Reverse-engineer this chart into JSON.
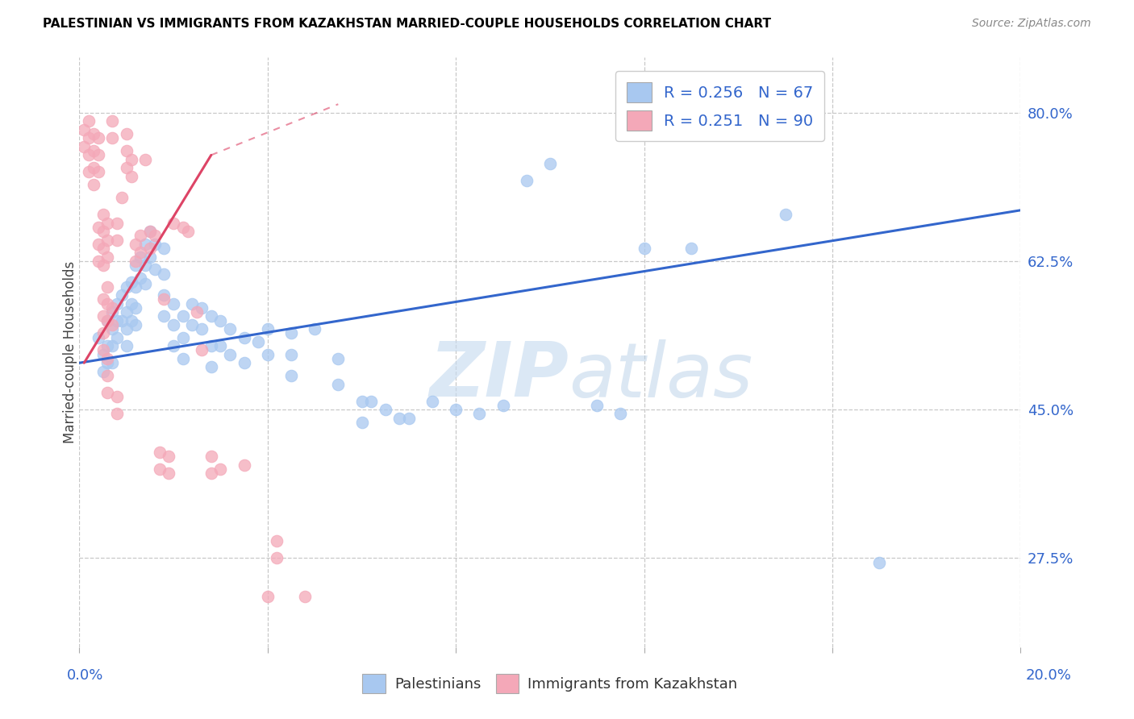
{
  "title": "PALESTINIAN VS IMMIGRANTS FROM KAZAKHSTAN MARRIED-COUPLE HOUSEHOLDS CORRELATION CHART",
  "source": "Source: ZipAtlas.com",
  "ylabel": "Married-couple Households",
  "ytick_labels": [
    "80.0%",
    "62.5%",
    "45.0%",
    "27.5%"
  ],
  "ytick_vals": [
    0.8,
    0.625,
    0.45,
    0.275
  ],
  "xmin": 0.0,
  "xmax": 0.2,
  "ymin": 0.17,
  "ymax": 0.865,
  "blue_color": "#A8C8F0",
  "pink_color": "#F4A8B8",
  "trend_blue_color": "#3366CC",
  "trend_pink_color": "#DD4466",
  "watermark_zip": "ZIP",
  "watermark_atlas": "atlas",
  "blue_scatter": [
    [
      0.004,
      0.535
    ],
    [
      0.005,
      0.515
    ],
    [
      0.005,
      0.495
    ],
    [
      0.006,
      0.555
    ],
    [
      0.006,
      0.525
    ],
    [
      0.006,
      0.505
    ],
    [
      0.007,
      0.565
    ],
    [
      0.007,
      0.545
    ],
    [
      0.007,
      0.525
    ],
    [
      0.007,
      0.505
    ],
    [
      0.008,
      0.575
    ],
    [
      0.008,
      0.555
    ],
    [
      0.008,
      0.535
    ],
    [
      0.009,
      0.585
    ],
    [
      0.009,
      0.555
    ],
    [
      0.01,
      0.595
    ],
    [
      0.01,
      0.565
    ],
    [
      0.01,
      0.545
    ],
    [
      0.01,
      0.525
    ],
    [
      0.011,
      0.6
    ],
    [
      0.011,
      0.575
    ],
    [
      0.011,
      0.555
    ],
    [
      0.012,
      0.62
    ],
    [
      0.012,
      0.595
    ],
    [
      0.012,
      0.57
    ],
    [
      0.012,
      0.55
    ],
    [
      0.013,
      0.63
    ],
    [
      0.013,
      0.605
    ],
    [
      0.014,
      0.645
    ],
    [
      0.014,
      0.62
    ],
    [
      0.014,
      0.598
    ],
    [
      0.015,
      0.66
    ],
    [
      0.015,
      0.63
    ],
    [
      0.016,
      0.645
    ],
    [
      0.016,
      0.615
    ],
    [
      0.018,
      0.64
    ],
    [
      0.018,
      0.61
    ],
    [
      0.018,
      0.585
    ],
    [
      0.018,
      0.56
    ],
    [
      0.02,
      0.575
    ],
    [
      0.02,
      0.55
    ],
    [
      0.02,
      0.525
    ],
    [
      0.022,
      0.56
    ],
    [
      0.022,
      0.535
    ],
    [
      0.022,
      0.51
    ],
    [
      0.024,
      0.575
    ],
    [
      0.024,
      0.55
    ],
    [
      0.026,
      0.57
    ],
    [
      0.026,
      0.545
    ],
    [
      0.028,
      0.56
    ],
    [
      0.028,
      0.525
    ],
    [
      0.028,
      0.5
    ],
    [
      0.03,
      0.555
    ],
    [
      0.03,
      0.525
    ],
    [
      0.032,
      0.545
    ],
    [
      0.032,
      0.515
    ],
    [
      0.035,
      0.535
    ],
    [
      0.035,
      0.505
    ],
    [
      0.038,
      0.53
    ],
    [
      0.04,
      0.545
    ],
    [
      0.04,
      0.515
    ],
    [
      0.045,
      0.54
    ],
    [
      0.045,
      0.515
    ],
    [
      0.045,
      0.49
    ],
    [
      0.05,
      0.545
    ],
    [
      0.055,
      0.51
    ],
    [
      0.055,
      0.48
    ],
    [
      0.06,
      0.46
    ],
    [
      0.06,
      0.435
    ],
    [
      0.062,
      0.46
    ],
    [
      0.065,
      0.45
    ],
    [
      0.068,
      0.44
    ],
    [
      0.07,
      0.44
    ],
    [
      0.075,
      0.46
    ],
    [
      0.08,
      0.45
    ],
    [
      0.085,
      0.445
    ],
    [
      0.09,
      0.455
    ],
    [
      0.095,
      0.72
    ],
    [
      0.1,
      0.74
    ],
    [
      0.11,
      0.455
    ],
    [
      0.115,
      0.445
    ],
    [
      0.12,
      0.64
    ],
    [
      0.13,
      0.64
    ],
    [
      0.15,
      0.68
    ],
    [
      0.17,
      0.27
    ]
  ],
  "pink_scatter": [
    [
      0.001,
      0.78
    ],
    [
      0.001,
      0.76
    ],
    [
      0.002,
      0.79
    ],
    [
      0.002,
      0.77
    ],
    [
      0.002,
      0.75
    ],
    [
      0.002,
      0.73
    ],
    [
      0.003,
      0.775
    ],
    [
      0.003,
      0.755
    ],
    [
      0.003,
      0.735
    ],
    [
      0.003,
      0.715
    ],
    [
      0.004,
      0.77
    ],
    [
      0.004,
      0.75
    ],
    [
      0.004,
      0.73
    ],
    [
      0.004,
      0.665
    ],
    [
      0.004,
      0.645
    ],
    [
      0.004,
      0.625
    ],
    [
      0.005,
      0.68
    ],
    [
      0.005,
      0.66
    ],
    [
      0.005,
      0.64
    ],
    [
      0.005,
      0.62
    ],
    [
      0.005,
      0.58
    ],
    [
      0.005,
      0.56
    ],
    [
      0.005,
      0.54
    ],
    [
      0.005,
      0.52
    ],
    [
      0.006,
      0.67
    ],
    [
      0.006,
      0.65
    ],
    [
      0.006,
      0.63
    ],
    [
      0.006,
      0.595
    ],
    [
      0.006,
      0.575
    ],
    [
      0.006,
      0.555
    ],
    [
      0.006,
      0.51
    ],
    [
      0.006,
      0.49
    ],
    [
      0.006,
      0.47
    ],
    [
      0.007,
      0.79
    ],
    [
      0.007,
      0.77
    ],
    [
      0.007,
      0.57
    ],
    [
      0.007,
      0.55
    ],
    [
      0.008,
      0.67
    ],
    [
      0.008,
      0.65
    ],
    [
      0.008,
      0.465
    ],
    [
      0.008,
      0.445
    ],
    [
      0.009,
      0.7
    ],
    [
      0.01,
      0.775
    ],
    [
      0.01,
      0.755
    ],
    [
      0.01,
      0.735
    ],
    [
      0.011,
      0.745
    ],
    [
      0.011,
      0.725
    ],
    [
      0.012,
      0.645
    ],
    [
      0.012,
      0.625
    ],
    [
      0.013,
      0.655
    ],
    [
      0.013,
      0.635
    ],
    [
      0.014,
      0.745
    ],
    [
      0.015,
      0.66
    ],
    [
      0.015,
      0.64
    ],
    [
      0.016,
      0.655
    ],
    [
      0.017,
      0.4
    ],
    [
      0.017,
      0.38
    ],
    [
      0.018,
      0.58
    ],
    [
      0.019,
      0.395
    ],
    [
      0.019,
      0.375
    ],
    [
      0.02,
      0.67
    ],
    [
      0.022,
      0.665
    ],
    [
      0.023,
      0.66
    ],
    [
      0.025,
      0.565
    ],
    [
      0.026,
      0.52
    ],
    [
      0.028,
      0.395
    ],
    [
      0.028,
      0.375
    ],
    [
      0.03,
      0.38
    ],
    [
      0.035,
      0.385
    ],
    [
      0.04,
      0.23
    ],
    [
      0.042,
      0.295
    ],
    [
      0.042,
      0.275
    ],
    [
      0.048,
      0.23
    ]
  ],
  "blue_trend": [
    0.0,
    0.505,
    0.2,
    0.685
  ],
  "pink_trend": [
    0.001,
    0.505,
    0.028,
    0.75
  ],
  "pink_trend_dashed": [
    0.001,
    0.505,
    0.055,
    0.81
  ]
}
